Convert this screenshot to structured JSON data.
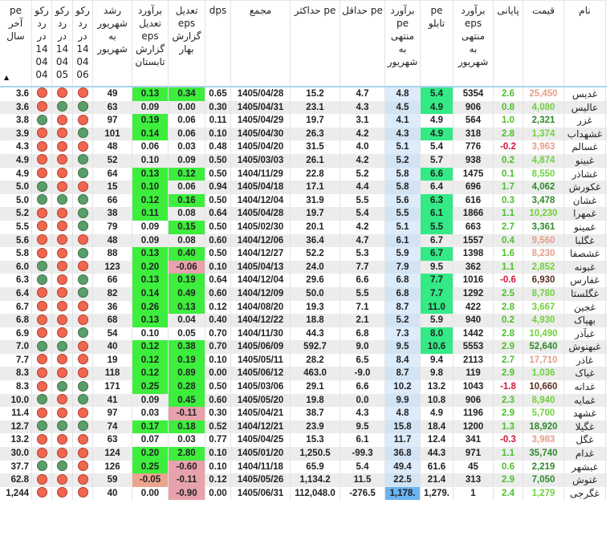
{
  "colors": {
    "positive_cell": "#3dee3d",
    "negative_cell": "#e8a2ac",
    "pe_board_highlight": "#33ea86",
    "pe_estimate_column": "#dcecfb",
    "record_true": "#5a9e6a",
    "record_false": "#f0674f"
  },
  "sort": {
    "column": "pe آخر سال",
    "direction": "ascending",
    "icon": "sort-up-icon"
  },
  "columns": [
    "pe\nآخر\nسال",
    "رکو\nرد\nدر\n14\n04\n04",
    "رکو\nرد\nدر\n14\n04\n05",
    "رکو\nرد\nدر\n14\n04\n06",
    "رشد\nشهریور\nبه\nشهریور",
    "برآورد\nتعدیل\neps\nگزارش\nتابستان",
    "تعدیل\neps\nگزارش\nبهار",
    "dps",
    "مجمع",
    "pe حداکثر",
    "pe حداقل",
    "برآورد\npe\nمنتهی\nبه\nشهریور",
    "pe\nتابلو",
    "برآورد\neps\nمنتهی\nبه\nشهریور",
    "پایانی",
    "قیمت",
    "نام"
  ],
  "rows": [
    {
      "pe_year": "3.6",
      "rec": [
        "r",
        "r",
        "r"
      ],
      "growth": "49",
      "adj_est": "0.13",
      "adj_est_hl": "g",
      "adj_spring": "0.34",
      "adj_spring_hl": "g",
      "dps": "0.65",
      "meeting": "1405/04/28",
      "pe_max": "15.2",
      "pe_min": "4.7",
      "pe_est": "4.8",
      "pe_board": "5.4",
      "pe_board_hl": true,
      "eps_est": "5354",
      "final": "2.6",
      "price": "25,450",
      "price_color": "lr",
      "name": "غدیس"
    },
    {
      "pe_year": "3.6",
      "rec": [
        "r",
        "g",
        "g"
      ],
      "growth": "63",
      "adj_est": "0.09",
      "adj_spring": "0.00",
      "dps": "0.30",
      "meeting": "1405/04/31",
      "pe_max": "23.1",
      "pe_min": "4.3",
      "pe_est": "4.5",
      "pe_board": "4.9",
      "pe_board_hl": true,
      "eps_est": "906",
      "final": "0.8",
      "price": "4,080",
      "price_color": "lg",
      "name": "عالیس"
    },
    {
      "pe_year": "3.8",
      "rec": [
        "g",
        "r",
        "r"
      ],
      "growth": "97",
      "adj_est": "0.19",
      "adj_est_hl": "g",
      "adj_spring": "0.06",
      "dps": "0.11",
      "meeting": "1405/04/29",
      "pe_max": "19.7",
      "pe_min": "3.1",
      "pe_est": "4.1",
      "pe_board": "4.9",
      "eps_est": "564",
      "final": "1.0",
      "price": "2,321",
      "price_color": "g",
      "name": "غزر"
    },
    {
      "pe_year": "3.9",
      "rec": [
        "r",
        "r",
        "g"
      ],
      "growth": "101",
      "adj_est": "0.14",
      "adj_est_hl": "g",
      "adj_spring": "0.06",
      "dps": "0.10",
      "meeting": "1405/04/30",
      "pe_max": "26.3",
      "pe_min": "4.2",
      "pe_est": "4.3",
      "pe_board": "4.9",
      "pe_board_hl": true,
      "eps_est": "318",
      "final": "2.8",
      "price": "1,374",
      "price_color": "lg",
      "name": "غشهداب"
    },
    {
      "pe_year": "4.3",
      "rec": [
        "r",
        "r",
        "r"
      ],
      "growth": "48",
      "adj_est": "0.06",
      "adj_spring": "0.03",
      "dps": "0.48",
      "meeting": "1405/04/20",
      "pe_max": "31.5",
      "pe_min": "4.0",
      "pe_est": "5.1",
      "pe_board": "5.4",
      "eps_est": "776",
      "final": "-0.2",
      "price": "3,963",
      "price_color": "lr",
      "name": "غسالم"
    },
    {
      "pe_year": "4.9",
      "rec": [
        "r",
        "r",
        "g"
      ],
      "growth": "52",
      "adj_est": "0.10",
      "adj_spring": "0.09",
      "dps": "0.50",
      "meeting": "1405/03/03",
      "pe_max": "26.1",
      "pe_min": "4.2",
      "pe_est": "5.2",
      "pe_board": "5.7",
      "eps_est": "938",
      "final": "0.2",
      "price": "4,874",
      "price_color": "lg",
      "name": "غبینو"
    },
    {
      "pe_year": "4.9",
      "rec": [
        "r",
        "r",
        "g"
      ],
      "growth": "64",
      "adj_est": "0.13",
      "adj_est_hl": "g",
      "adj_spring": "0.12",
      "adj_spring_hl": "g",
      "dps": "0.50",
      "meeting": "1404/11/29",
      "pe_max": "22.8",
      "pe_min": "5.2",
      "pe_est": "5.8",
      "pe_board": "6.6",
      "pe_board_hl": true,
      "eps_est": "1475",
      "final": "0.1",
      "price": "8,550",
      "price_color": "lg",
      "name": "غشاذر"
    },
    {
      "pe_year": "5.0",
      "rec": [
        "g",
        "r",
        "r"
      ],
      "growth": "15",
      "adj_est": "0.10",
      "adj_est_hl": "g",
      "adj_spring": "0.06",
      "dps": "0.94",
      "meeting": "1405/04/18",
      "pe_max": "17.1",
      "pe_min": "4.4",
      "pe_est": "5.8",
      "pe_board": "6.4",
      "eps_est": "696",
      "final": "1.7",
      "price": "4,062",
      "price_color": "g",
      "name": "غکورش"
    },
    {
      "pe_year": "5.0",
      "rec": [
        "g",
        "g",
        "g"
      ],
      "growth": "66",
      "adj_est": "0.12",
      "adj_est_hl": "g",
      "adj_spring": "0.16",
      "adj_spring_hl": "g",
      "dps": "0.50",
      "meeting": "1404/12/04",
      "pe_max": "31.9",
      "pe_min": "5.5",
      "pe_est": "5.6",
      "pe_board": "6.3",
      "pe_board_hl": true,
      "eps_est": "616",
      "final": "0.3",
      "price": "3,478",
      "price_color": "g",
      "name": "غشان"
    },
    {
      "pe_year": "5.2",
      "rec": [
        "r",
        "r",
        "g"
      ],
      "growth": "38",
      "adj_est": "0.11",
      "adj_est_hl": "g",
      "adj_spring": "0.08",
      "dps": "0.64",
      "meeting": "1405/04/28",
      "pe_max": "19.7",
      "pe_min": "5.4",
      "pe_est": "5.5",
      "pe_board": "6.1",
      "pe_board_hl": true,
      "eps_est": "1866",
      "final": "1.1",
      "price": "10,230",
      "price_color": "lg",
      "name": "غمهرا"
    },
    {
      "pe_year": "5.5",
      "rec": [
        "r",
        "r",
        "g"
      ],
      "growth": "79",
      "adj_est": "0.09",
      "adj_spring": "0.15",
      "adj_spring_hl": "g",
      "dps": "0.50",
      "meeting": "1405/02/30",
      "pe_max": "20.1",
      "pe_min": "4.2",
      "pe_est": "5.1",
      "pe_board": "5.5",
      "pe_board_hl": true,
      "eps_est": "663",
      "final": "2.7",
      "price": "3,361",
      "price_color": "g",
      "name": "غمینو"
    },
    {
      "pe_year": "5.6",
      "rec": [
        "r",
        "r",
        "r"
      ],
      "growth": "48",
      "adj_est": "0.09",
      "adj_spring": "0.08",
      "dps": "0.60",
      "meeting": "1404/12/06",
      "pe_max": "36.4",
      "pe_min": "4.7",
      "pe_est": "6.1",
      "pe_board": "6.7",
      "eps_est": "1557",
      "final": "0.4",
      "price": "9,560",
      "price_color": "lr",
      "name": "غگلبا"
    },
    {
      "pe_year": "5.8",
      "rec": [
        "r",
        "r",
        "g"
      ],
      "growth": "88",
      "adj_est": "0.13",
      "adj_est_hl": "g",
      "adj_spring": "0.40",
      "adj_spring_hl": "g",
      "dps": "0.50",
      "meeting": "1404/12/27",
      "pe_max": "52.2",
      "pe_min": "5.3",
      "pe_est": "5.9",
      "pe_board": "6.7",
      "pe_board_hl": true,
      "eps_est": "1398",
      "final": "1.6",
      "price": "8,230",
      "price_color": "lr",
      "name": "غشصفا"
    },
    {
      "pe_year": "6.0",
      "rec": [
        "g",
        "r",
        "r"
      ],
      "growth": "123",
      "adj_est": "0.20",
      "adj_est_hl": "g",
      "adj_spring": "-0.06",
      "adj_spring_hl": "p",
      "dps": "0.10",
      "meeting": "1405/04/13",
      "pe_max": "24.0",
      "pe_min": "7.7",
      "pe_est": "7.9",
      "pe_board": "9.5",
      "eps_est": "362",
      "final": "1.1",
      "price": "2,852",
      "price_color": "lg",
      "name": "غبونه"
    },
    {
      "pe_year": "6.3",
      "rec": [
        "g",
        "r",
        "g"
      ],
      "growth": "66",
      "adj_est": "0.13",
      "adj_est_hl": "g",
      "adj_spring": "0.19",
      "adj_spring_hl": "g",
      "dps": "0.64",
      "meeting": "1404/12/04",
      "pe_max": "29.6",
      "pe_min": "6.6",
      "pe_est": "6.8",
      "pe_board": "7.7",
      "pe_board_hl": true,
      "eps_est": "1016",
      "final": "-0.6",
      "price": "6,930",
      "price_color": "dk",
      "name": "غفارس"
    },
    {
      "pe_year": "6.4",
      "rec": [
        "r",
        "r",
        "g"
      ],
      "growth": "82",
      "adj_est": "0.14",
      "adj_est_hl": "g",
      "adj_spring": "0.49",
      "adj_spring_hl": "g",
      "dps": "0.60",
      "meeting": "1404/12/09",
      "pe_max": "50.0",
      "pe_min": "5.5",
      "pe_est": "6.8",
      "pe_board": "7.7",
      "pe_board_hl": true,
      "eps_est": "1292",
      "final": "2.5",
      "price": "8,780",
      "price_color": "lg",
      "name": "غگلستا"
    },
    {
      "pe_year": "6.7",
      "rec": [
        "r",
        "r",
        "r"
      ],
      "growth": "36",
      "adj_est": "0.26",
      "adj_est_hl": "g",
      "adj_spring": "0.13",
      "adj_spring_hl": "g",
      "dps": "0.12",
      "meeting": "1404/08/20",
      "pe_max": "19.3",
      "pe_min": "7.1",
      "pe_est": "8.7",
      "pe_board": "11.0",
      "pe_board_hl": true,
      "eps_est": "422",
      "final": "2.8",
      "price": "3,667",
      "price_color": "lg",
      "name": "غجین"
    },
    {
      "pe_year": "6.8",
      "rec": [
        "r",
        "r",
        "r"
      ],
      "growth": "68",
      "adj_est": "0.13",
      "adj_est_hl": "g",
      "adj_spring": "0.04",
      "dps": "0.40",
      "meeting": "1404/12/22",
      "pe_max": "18.8",
      "pe_min": "2.1",
      "pe_est": "5.2",
      "pe_board": "5.9",
      "eps_est": "940",
      "final": "0.2",
      "price": "4,930",
      "price_color": "lg",
      "name": "بهپاک"
    },
    {
      "pe_year": "6.9",
      "rec": [
        "r",
        "r",
        "g"
      ],
      "growth": "54",
      "adj_est": "0.10",
      "adj_spring": "0.05",
      "dps": "0.70",
      "meeting": "1404/11/30",
      "pe_max": "44.3",
      "pe_min": "6.8",
      "pe_est": "7.3",
      "pe_board": "8.0",
      "pe_board_hl": true,
      "eps_est": "1442",
      "final": "2.8",
      "price": "10,490",
      "price_color": "lg",
      "name": "غبآذر"
    },
    {
      "pe_year": "7.0",
      "rec": [
        "g",
        "g",
        "r"
      ],
      "growth": "40",
      "adj_est": "0.12",
      "adj_est_hl": "g",
      "adj_spring": "0.38",
      "adj_spring_hl": "g",
      "dps": "0.70",
      "meeting": "1405/06/09",
      "pe_max": "592.7",
      "pe_min": "9.0",
      "pe_est": "9.5",
      "pe_board": "10.6",
      "pe_board_hl": true,
      "eps_est": "5553",
      "final": "2.9",
      "price": "52,640",
      "price_color": "g",
      "name": "غبهنوش"
    },
    {
      "pe_year": "7.7",
      "rec": [
        "r",
        "r",
        "r"
      ],
      "growth": "19",
      "adj_est": "0.12",
      "adj_est_hl": "g",
      "adj_spring": "0.19",
      "adj_spring_hl": "g",
      "dps": "0.10",
      "meeting": "1405/05/11",
      "pe_max": "28.2",
      "pe_min": "6.5",
      "pe_est": "8.4",
      "pe_board": "9.4",
      "eps_est": "2113",
      "final": "2.7",
      "price": "17,710",
      "price_color": "lr",
      "name": "غاذر"
    },
    {
      "pe_year": "8.3",
      "rec": [
        "r",
        "r",
        "r"
      ],
      "growth": "118",
      "adj_est": "0.12",
      "adj_est_hl": "g",
      "adj_spring": "0.89",
      "adj_spring_hl": "g",
      "dps": "0.00",
      "meeting": "1405/06/12",
      "pe_max": "463.0",
      "pe_min": "-9.0",
      "pe_est": "8.7",
      "pe_board": "9.8",
      "eps_est": "119",
      "final": "2.9",
      "price": "1,036",
      "price_color": "lg",
      "name": "غیاک"
    },
    {
      "pe_year": "8.3",
      "rec": [
        "r",
        "g",
        "g"
      ],
      "growth": "171",
      "adj_est": "0.25",
      "adj_est_hl": "g",
      "adj_spring": "0.28",
      "adj_spring_hl": "g",
      "dps": "0.50",
      "meeting": "1405/03/06",
      "pe_max": "29.1",
      "pe_min": "6.6",
      "pe_est": "10.2",
      "pe_board": "13.2",
      "eps_est": "1043",
      "final": "-1.8",
      "price": "10,660",
      "price_color": "dk",
      "name": "غدانه"
    },
    {
      "pe_year": "10.0",
      "rec": [
        "g",
        "r",
        "g"
      ],
      "growth": "41",
      "adj_est": "0.09",
      "adj_spring": "0.45",
      "adj_spring_hl": "g",
      "dps": "0.60",
      "meeting": "1405/05/20",
      "pe_max": "19.8",
      "pe_min": "0.0",
      "pe_est": "9.9",
      "pe_board": "10.8",
      "eps_est": "906",
      "final": "2.3",
      "price": "8,940",
      "price_color": "lg",
      "name": "غمایه"
    },
    {
      "pe_year": "11.4",
      "rec": [
        "r",
        "r",
        "r"
      ],
      "growth": "97",
      "adj_est": "0.03",
      "adj_spring": "-0.11",
      "adj_spring_hl": "p",
      "dps": "0.30",
      "meeting": "1405/04/21",
      "pe_max": "38.7",
      "pe_min": "4.3",
      "pe_est": "4.8",
      "pe_board": "4.9",
      "eps_est": "1196",
      "final": "2.9",
      "price": "5,700",
      "price_color": "lg",
      "name": "غشهد"
    },
    {
      "pe_year": "12.7",
      "rec": [
        "g",
        "g",
        "g"
      ],
      "growth": "74",
      "adj_est": "0.17",
      "adj_est_hl": "g",
      "adj_spring": "0.18",
      "adj_spring_hl": "g",
      "dps": "0.52",
      "meeting": "1404/12/21",
      "pe_max": "23.9",
      "pe_min": "9.5",
      "pe_est": "15.8",
      "pe_board": "18.4",
      "eps_est": "1200",
      "final": "1.3",
      "price": "18,920",
      "price_color": "g",
      "name": "غگیلا"
    },
    {
      "pe_year": "13.2",
      "rec": [
        "r",
        "r",
        "r"
      ],
      "growth": "63",
      "adj_est": "0.07",
      "adj_spring": "0.03",
      "dps": "0.77",
      "meeting": "1405/04/25",
      "pe_max": "15.3",
      "pe_min": "6.1",
      "pe_est": "11.7",
      "pe_board": "12.4",
      "eps_est": "341",
      "final": "-0.3",
      "price": "3,983",
      "price_color": "lr",
      "name": "غگل"
    },
    {
      "pe_year": "30.0",
      "rec": [
        "r",
        "r",
        "r"
      ],
      "growth": "124",
      "adj_est": "0.20",
      "adj_est_hl": "g",
      "adj_spring": "2.80",
      "adj_spring_hl": "g",
      "dps": "0.10",
      "meeting": "1405/01/20",
      "pe_max": "1,250.5",
      "pe_min": "-99.3",
      "pe_est": "36.8",
      "pe_board": "44.3",
      "eps_est": "971",
      "final": "1.1",
      "price": "35,740",
      "price_color": "g",
      "name": "غدام"
    },
    {
      "pe_year": "37.7",
      "rec": [
        "g",
        "g",
        "r"
      ],
      "growth": "126",
      "adj_est": "0.25",
      "adj_est_hl": "g",
      "adj_spring": "-0.60",
      "adj_spring_hl": "p",
      "dps": "0.10",
      "meeting": "1404/11/18",
      "pe_max": "65.9",
      "pe_min": "5.4",
      "pe_est": "49.4",
      "pe_board": "61.6",
      "eps_est": "45",
      "final": "0.6",
      "price": "2,219",
      "price_color": "g",
      "name": "غبشهر"
    },
    {
      "pe_year": "62.8",
      "rec": [
        "r",
        "r",
        "r"
      ],
      "growth": "59",
      "adj_est": "-0.05",
      "adj_est_hl": "s",
      "adj_spring": "-0.11",
      "adj_spring_hl": "p",
      "dps": "0.12",
      "meeting": "1405/05/26",
      "pe_max": "1,134.2",
      "pe_min": "11.5",
      "pe_est": "22.5",
      "pe_board": "21.4",
      "eps_est": "313",
      "final": "2.9",
      "price": "7,050",
      "price_color": "g",
      "name": "غنوش"
    },
    {
      "pe_year": "1,244",
      "rec": [
        "r",
        "r",
        "r"
      ],
      "growth": "40",
      "adj_est": "0.00",
      "adj_spring": "-0.90",
      "adj_spring_hl": "p",
      "dps": "0.00",
      "meeting": "1405/06/31",
      "pe_max": "112,048.0",
      "pe_min": "-276.5",
      "pe_est": "1,178.",
      "pe_est_selected": true,
      "pe_board": "1,279.",
      "eps_est": "1",
      "final": "2.4",
      "price": "1,279",
      "price_color": "lg",
      "name": "غگرجی"
    }
  ]
}
